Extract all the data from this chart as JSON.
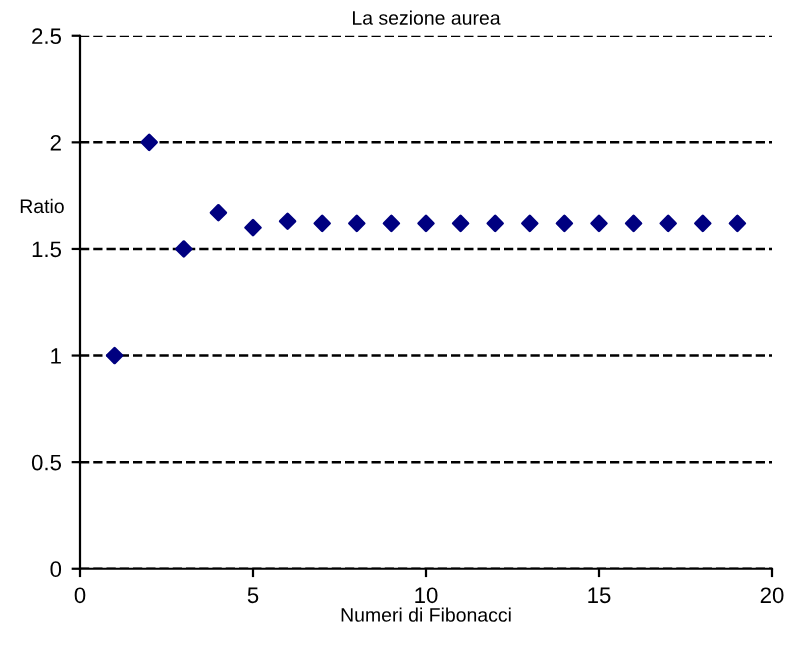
{
  "chart_data": {
    "type": "scatter",
    "title": "La sezione aurea",
    "xlabel": "Numeri di Fibonacci",
    "ylabel": "Ratio",
    "x": [
      1,
      2,
      3,
      4,
      5,
      6,
      7,
      8,
      9,
      10,
      11,
      12,
      13,
      14,
      15,
      16,
      17,
      18,
      19
    ],
    "series": [
      {
        "color": "#000080",
        "values": [
          1,
          2,
          1.5,
          1.67,
          1.6,
          1.63,
          1.62,
          1.62,
          1.62,
          1.62,
          1.62,
          1.62,
          1.62,
          1.62,
          1.62,
          1.62,
          1.62,
          1.62,
          1.62
        ]
      }
    ],
    "xlim": [
      0,
      20
    ],
    "xticks": [
      0,
      5,
      10,
      15,
      20
    ],
    "ylim": [
      0,
      2.5
    ],
    "yticks": [
      0,
      0.5,
      1,
      1.5,
      2,
      2.5
    ],
    "grid": "y",
    "line_style": "dashed",
    "marker": "diamond"
  }
}
